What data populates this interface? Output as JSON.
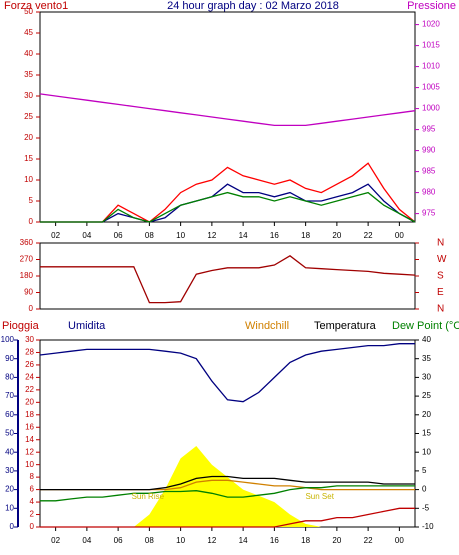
{
  "chart_data": [
    {
      "type": "line",
      "title": "24 hour graph day : 02 Marzo 2018",
      "left_label": "Forza vento1",
      "right_label": "Pressione",
      "x": [
        1,
        2,
        3,
        4,
        5,
        6,
        7,
        8,
        9,
        10,
        11,
        12,
        13,
        14,
        15,
        16,
        17,
        18,
        19,
        20,
        21,
        22,
        23,
        24,
        25
      ],
      "xlim": [
        1,
        25
      ],
      "xticks": [
        {
          "value": 2,
          "label": "02"
        },
        {
          "value": 4,
          "label": "04"
        },
        {
          "value": 6,
          "label": "06"
        },
        {
          "value": 8,
          "label": "08"
        },
        10,
        12,
        14,
        16,
        18,
        20,
        22,
        {
          "value": 24,
          "label": "00"
        }
      ],
      "ylim": [
        0,
        50
      ],
      "yticks": [
        0,
        5,
        10,
        15,
        20,
        25,
        30,
        35,
        40,
        45,
        50
      ],
      "ycolor": "#c00000",
      "y2lim": [
        973,
        1023
      ],
      "y2ticks": [
        975,
        980,
        985,
        990,
        995,
        1000,
        1005,
        1010,
        1015,
        1020
      ],
      "y2color": "#c000c0",
      "series": [
        {
          "color": "#c000c0",
          "axis": "y2",
          "values": [
            1003.5,
            1003,
            1002.5,
            1002,
            1001.5,
            1001,
            1000.5,
            1000,
            999.5,
            999,
            998.5,
            998,
            997.5,
            997,
            996.5,
            996,
            996,
            996,
            996.5,
            997,
            997.5,
            998,
            998.5,
            999,
            999.5
          ]
        },
        {
          "color": "#ff0000",
          "values": [
            0,
            0,
            0,
            0,
            0,
            4,
            2,
            0,
            3,
            7,
            9,
            10,
            13,
            11,
            10,
            9,
            10,
            8,
            7,
            9,
            11,
            14,
            8,
            3,
            0
          ]
        },
        {
          "color": "#000080",
          "values": [
            0,
            0,
            0,
            0,
            0,
            2,
            1,
            0,
            1,
            4,
            5,
            6,
            9,
            7,
            7,
            6,
            7,
            5,
            5,
            6,
            7,
            9,
            5,
            2,
            0
          ]
        },
        {
          "color": "#008000",
          "values": [
            0,
            0,
            0,
            0,
            0,
            3,
            1,
            0,
            2,
            4,
            5,
            6,
            7,
            6,
            6,
            5,
            6,
            5,
            4,
            5,
            6,
            7,
            4,
            2,
            0
          ]
        }
      ]
    },
    {
      "type": "line",
      "x": [
        1,
        2,
        3,
        4,
        5,
        6,
        7,
        8,
        9,
        10,
        11,
        12,
        13,
        14,
        15,
        16,
        17,
        18,
        19,
        20,
        21,
        22,
        23,
        24,
        25
      ],
      "xlim": [
        1,
        25
      ],
      "ylim": [
        0,
        360
      ],
      "yticks": [
        0,
        90,
        180,
        270,
        360
      ],
      "ycolor": "#c00000",
      "y2lim": [
        0,
        360
      ],
      "y2ticks": [
        {
          "value": 0,
          "label": "N"
        },
        {
          "value": 90,
          "label": "E"
        },
        {
          "value": 180,
          "label": "S"
        },
        {
          "value": 270,
          "label": "W"
        },
        {
          "value": 360,
          "label": "N"
        }
      ],
      "y2color": "#c00000",
      "series": [
        {
          "color": "#a00000",
          "values": [
            230,
            230,
            230,
            230,
            230,
            230,
            230,
            35,
            35,
            40,
            190,
            210,
            225,
            225,
            225,
            240,
            290,
            225,
            220,
            215,
            210,
            205,
            195,
            190,
            185
          ]
        }
      ]
    },
    {
      "type": "line",
      "x": [
        1,
        2,
        3,
        4,
        5,
        6,
        7,
        8,
        9,
        10,
        11,
        12,
        13,
        14,
        15,
        16,
        17,
        18,
        19,
        20,
        21,
        22,
        23,
        24,
        25
      ],
      "xlim": [
        1,
        25
      ],
      "xticks": [
        {
          "value": 2,
          "label": "02"
        },
        {
          "value": 4,
          "label": "04"
        },
        {
          "value": 6,
          "label": "06"
        },
        {
          "value": 8,
          "label": "08"
        },
        10,
        12,
        14,
        16,
        18,
        20,
        22,
        {
          "value": 24,
          "label": "00"
        }
      ],
      "ylim": [
        0,
        30
      ],
      "yticks": [
        0,
        2,
        4,
        6,
        8,
        10,
        12,
        14,
        16,
        18,
        20,
        22,
        24,
        26,
        28,
        30
      ],
      "ycolor": "#c00000",
      "y3lim": [
        0,
        100
      ],
      "y3ticks": [
        0,
        10,
        20,
        30,
        40,
        50,
        60,
        70,
        80,
        90,
        100
      ],
      "y3color": "#000080",
      "y2lim": [
        -10,
        40
      ],
      "y2ticks": [
        -10,
        -5,
        0,
        5,
        10,
        15,
        20,
        25,
        30,
        35,
        40
      ],
      "y2color": "#000000",
      "annotations": [
        {
          "text": "Sun Rise",
          "x": 7.9
        },
        {
          "text": "Sun Set",
          "x": 18.9
        }
      ],
      "series": [
        {
          "color": "#ffff00",
          "area": true,
          "values": [
            0,
            0,
            0,
            0,
            0,
            0,
            0,
            2,
            6,
            11,
            13,
            10,
            8,
            6,
            5,
            4,
            2,
            0.5,
            0,
            0,
            0,
            0,
            0,
            0,
            0
          ]
        },
        {
          "name": "Pioggia",
          "color": "#c00000",
          "values": [
            0,
            0,
            0,
            0,
            0,
            0,
            0,
            0,
            0,
            0,
            0,
            0,
            0,
            0,
            0,
            0,
            0.5,
            1,
            1,
            1.5,
            1.5,
            2,
            2.5,
            3,
            3
          ]
        },
        {
          "name": "Umidita",
          "color": "#000080",
          "axis": "y3",
          "values": [
            92,
            93,
            94,
            95,
            95,
            95,
            95,
            95,
            94,
            93,
            90,
            78,
            68,
            67,
            72,
            80,
            88,
            92,
            94,
            95,
            96,
            97,
            97,
            98,
            98
          ]
        },
        {
          "name": "Windchill",
          "color": "#d08000",
          "axis": "y2",
          "values": [
            0,
            0,
            0,
            0,
            0,
            0,
            0,
            0,
            0,
            0.5,
            2,
            2.5,
            2.5,
            2,
            1.5,
            1,
            1,
            0.5,
            0,
            0,
            0,
            0,
            0,
            0,
            0
          ]
        },
        {
          "name": "Temperatura",
          "color": "#000000",
          "axis": "y2",
          "values": [
            0,
            0,
            0,
            0,
            0,
            0,
            0,
            0,
            0.5,
            1.5,
            3,
            3.5,
            3.5,
            3,
            3,
            3,
            2.5,
            2,
            2,
            2,
            2,
            2,
            1.5,
            1.5,
            1.5
          ]
        },
        {
          "name": "Dew Point (°C",
          "color": "#008000",
          "axis": "y2",
          "values": [
            -3,
            -3,
            -2.5,
            -2,
            -2,
            -1.5,
            -1,
            -1,
            -0.5,
            -0.5,
            -0.3,
            -1,
            -2,
            -2,
            -1.5,
            -1,
            0,
            0.5,
            0.5,
            1,
            1,
            1,
            1,
            1,
            1
          ]
        }
      ]
    }
  ]
}
